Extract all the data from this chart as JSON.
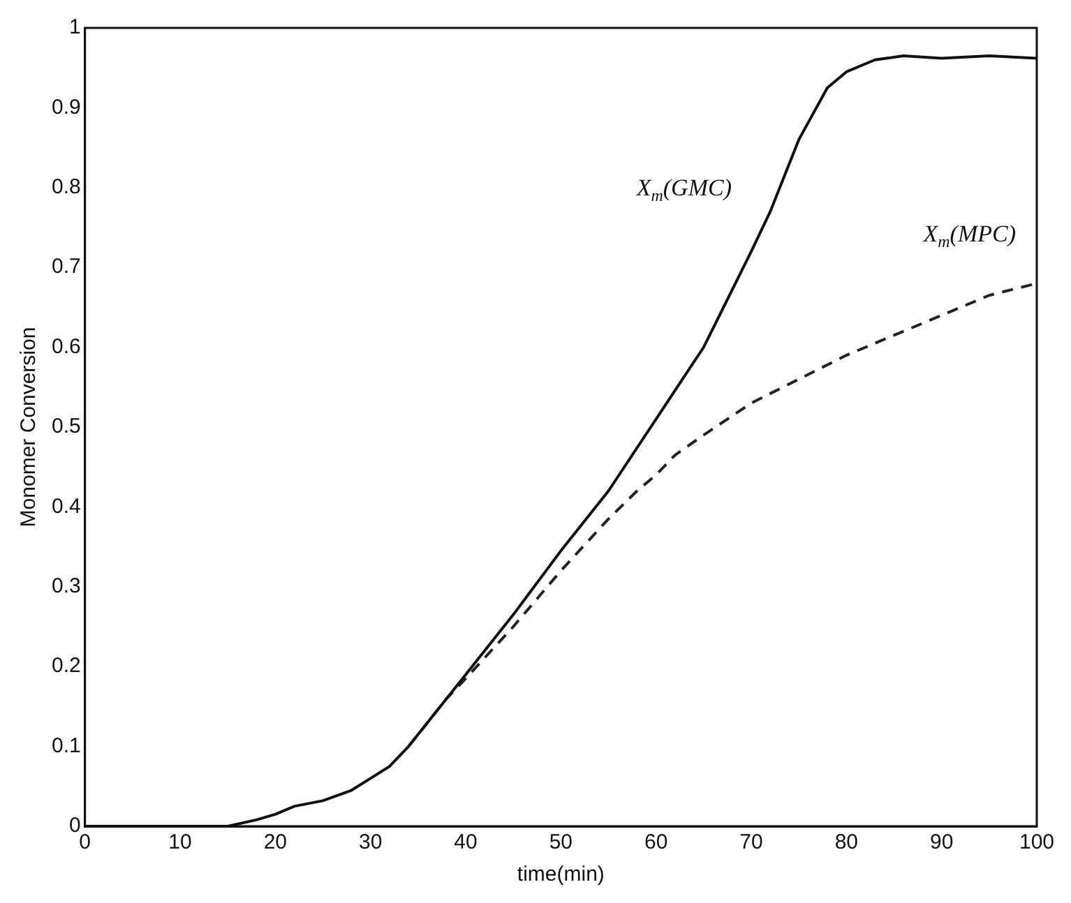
{
  "chart_data": {
    "type": "line",
    "xlabel": "time(min)",
    "ylabel": "Monomer Conversion",
    "xlim": [
      0,
      100
    ],
    "xticks": [
      0,
      10,
      20,
      30,
      40,
      50,
      60,
      70,
      80,
      90,
      100
    ],
    "ylim": [
      0,
      1
    ],
    "yticks": [
      0,
      0.1,
      0.2,
      0.3,
      0.4,
      0.5,
      0.6,
      0.7,
      0.8,
      0.9,
      1
    ],
    "grid": false,
    "legend": false,
    "marker": "none",
    "series": [
      {
        "name": "X$_{m}$(GMC)",
        "color": "#111111",
        "line_style": "solid",
        "x": [
          0,
          10,
          15,
          18,
          20,
          22,
          25,
          28,
          30,
          32,
          34,
          36,
          38,
          40,
          45,
          50,
          55,
          60,
          65,
          70,
          72,
          75,
          78,
          80,
          83,
          86,
          90,
          95,
          100
        ],
        "values": [
          0,
          0,
          0,
          0.008,
          0.015,
          0.025,
          0.032,
          0.045,
          0.06,
          0.075,
          0.1,
          0.13,
          0.16,
          0.19,
          0.265,
          0.345,
          0.42,
          0.51,
          0.6,
          0.72,
          0.77,
          0.86,
          0.925,
          0.945,
          0.96,
          0.965,
          0.962,
          0.965,
          0.962
        ]
      },
      {
        "name": "X$_{m}$(MPC)",
        "color": "#222222",
        "line_style": "dashed",
        "x": [
          34,
          36,
          38,
          40,
          45,
          50,
          55,
          58,
          60,
          62,
          65,
          70,
          75,
          80,
          85,
          90,
          95,
          100
        ],
        "values": [
          0.1,
          0.13,
          0.16,
          0.185,
          0.25,
          0.32,
          0.385,
          0.42,
          0.44,
          0.465,
          0.49,
          0.53,
          0.56,
          0.59,
          0.615,
          0.64,
          0.665,
          0.68
        ]
      }
    ]
  }
}
